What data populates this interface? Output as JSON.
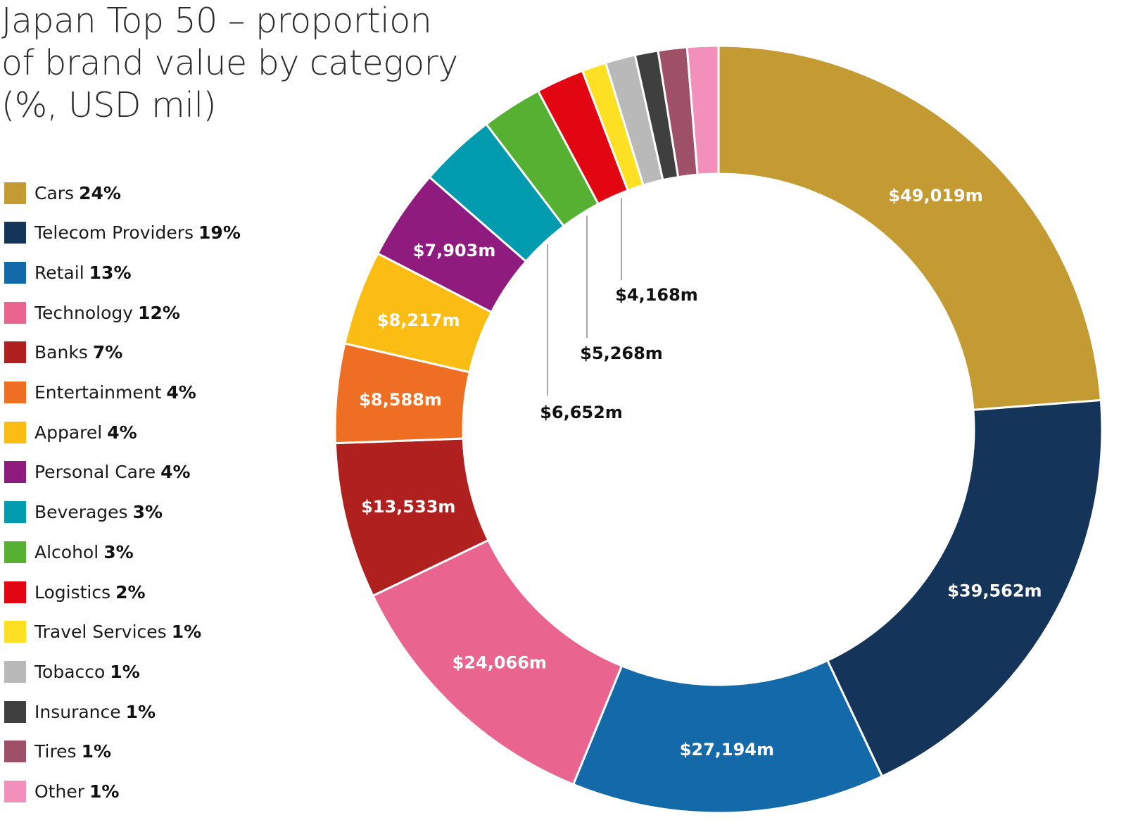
{
  "title": {
    "line1": "Japan Top 50 – proportion",
    "line2": "of brand value by category",
    "line3": "(%, USD mil)"
  },
  "chart_data": {
    "type": "pie",
    "variant": "donut",
    "title": "Japan Top 50 – proportion of brand value by category (%, USD mil)",
    "start": "12 o'clock",
    "direction": "clockwise",
    "legend_position": "left",
    "series": [
      {
        "name": "Cars",
        "percent": "24%",
        "value": 49019,
        "label": "$49,019m",
        "color": "#c49a33",
        "label_color": "#ffffff"
      },
      {
        "name": "Telecom Providers",
        "percent": "19%",
        "value": 39562,
        "label": "$39,562m",
        "color": "#15345a",
        "label_color": "#ffffff"
      },
      {
        "name": "Retail",
        "percent": "13%",
        "value": 27194,
        "label": "$27,194m",
        "color": "#146aa9",
        "label_color": "#ffffff"
      },
      {
        "name": "Technology",
        "percent": "12%",
        "value": 24066,
        "label": "$24,066m",
        "color": "#e9648f",
        "label_color": "#ffffff"
      },
      {
        "name": "Banks",
        "percent": "7%",
        "value": 13533,
        "label": "$13,533m",
        "color": "#b0201f",
        "label_color": "#ffffff"
      },
      {
        "name": "Entertainment",
        "percent": "4%",
        "value": 8588,
        "label": "$8,588m",
        "color": "#ee6f24",
        "label_color": "#ffffff"
      },
      {
        "name": "Apparel",
        "percent": "4%",
        "value": 8217,
        "label": "$8,217m",
        "color": "#fbbd13",
        "label_color": "#ffffff"
      },
      {
        "name": "Personal Care",
        "percent": "4%",
        "value": 7903,
        "label": "$7,903m",
        "color": "#8f1b7f",
        "label_color": "#ffffff"
      },
      {
        "name": "Beverages",
        "percent": "3%",
        "value": 6652,
        "label": "$6,652m",
        "color": "#009baf",
        "label_color": "#111111"
      },
      {
        "name": "Alcohol",
        "percent": "3%",
        "value": 5268,
        "label": "$5,268m",
        "color": "#56b031",
        "label_color": "#111111"
      },
      {
        "name": "Logistics",
        "percent": "2%",
        "value": 4168,
        "label": "$4,168m",
        "color": "#e20613",
        "label_color": "#111111"
      },
      {
        "name": "Travel Services",
        "percent": "1%",
        "value": 2100,
        "label": "",
        "color": "#fde024",
        "label_color": "#111111"
      },
      {
        "name": "Tobacco",
        "percent": "1%",
        "value": 2600,
        "label": "",
        "color": "#b9b9b9",
        "label_color": "#111111"
      },
      {
        "name": "Insurance",
        "percent": "1%",
        "value": 2000,
        "label": "",
        "color": "#3f3f3f",
        "label_color": "#111111"
      },
      {
        "name": "Tires",
        "percent": "1%",
        "value": 2500,
        "label": "",
        "color": "#9e5068",
        "label_color": "#111111"
      },
      {
        "name": "Other",
        "percent": "1%",
        "value": 2700,
        "label": "",
        "color": "#f28fbb",
        "label_color": "#111111"
      }
    ]
  }
}
